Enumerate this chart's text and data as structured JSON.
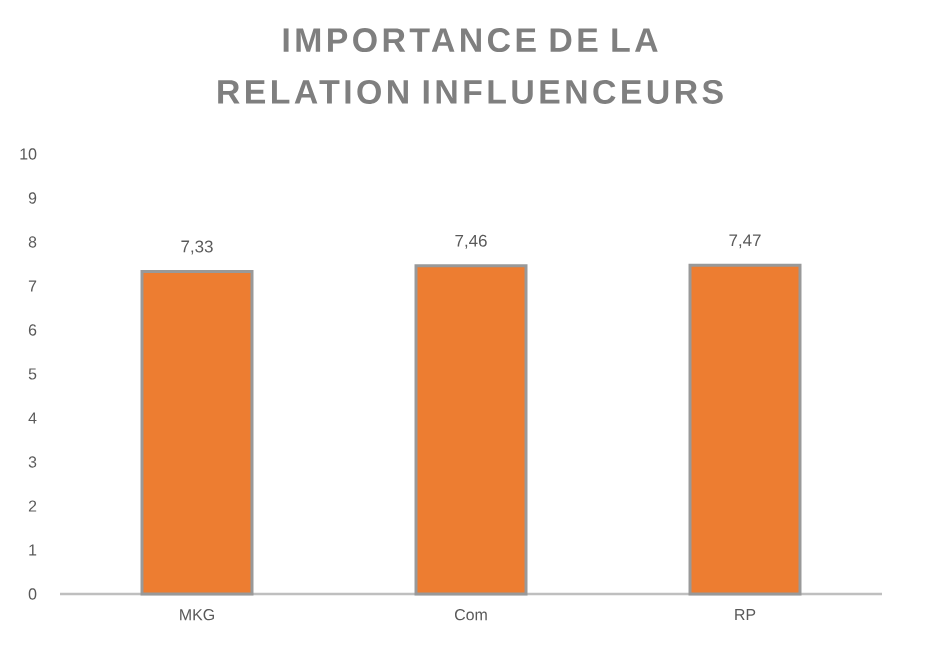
{
  "chart_data": {
    "type": "bar",
    "title": "IMPORTANCE DE LA RELATION INFLUENCEURS",
    "categories": [
      "MKG",
      "Com",
      "RP"
    ],
    "values": [
      7.33,
      7.46,
      7.47
    ],
    "value_labels": [
      "7,33",
      "7,46",
      "7,47"
    ],
    "color": "#ed7d31",
    "ylim": [
      0,
      10
    ],
    "yticks": [
      0,
      1,
      2,
      3,
      4,
      5,
      6,
      7,
      8,
      9,
      10
    ],
    "grid": false
  }
}
